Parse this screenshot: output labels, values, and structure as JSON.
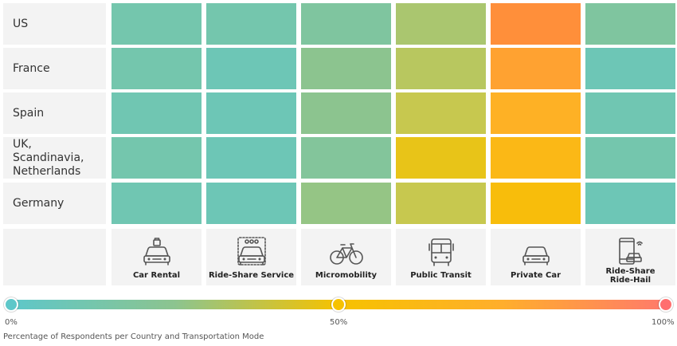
{
  "chart_data": {
    "type": "heatmap",
    "rows": [
      "US",
      "France",
      "Spain",
      "UK, Scandinavia, Netherlands",
      "Germany"
    ],
    "columns": [
      "Car Rental",
      "Ride-Share Service",
      "Micromobility",
      "Public Transit",
      "Private Car",
      "Ride-Share Ride-Hail"
    ],
    "values": [
      [
        12,
        12,
        18,
        35,
        88,
        18
      ],
      [
        12,
        8,
        25,
        40,
        80,
        8
      ],
      [
        10,
        8,
        25,
        45,
        72,
        10
      ],
      [
        12,
        8,
        20,
        52,
        65,
        12
      ],
      [
        10,
        8,
        28,
        45,
        60,
        8
      ]
    ],
    "color_scale": {
      "min": 0,
      "mid": 50,
      "max": 100,
      "colors": [
        "#5ec7c9",
        "#f6c200",
        "#ff6f6f"
      ]
    },
    "scale_labels": [
      "0%",
      "50%",
      "100%"
    ],
    "caption": "Percentage of Respondents per Country and Transportation Mode"
  },
  "icons": [
    "car-rental-icon",
    "ride-share-service-icon",
    "micromobility-icon",
    "public-transit-icon",
    "private-car-icon",
    "ride-hail-icon"
  ]
}
